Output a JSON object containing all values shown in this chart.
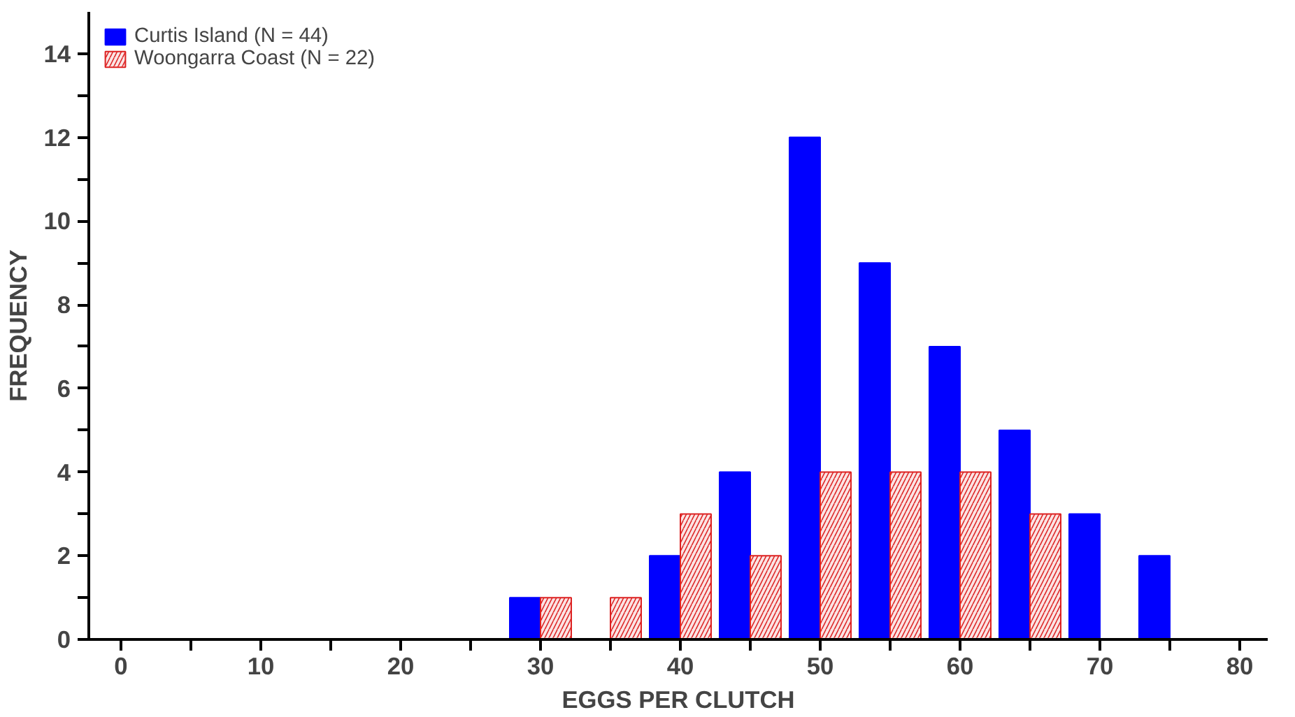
{
  "chart_data": {
    "type": "bar",
    "xlabel": "EGGS PER CLUTCH",
    "ylabel": "FREQUENCY",
    "x": [
      30,
      35,
      40,
      45,
      50,
      55,
      60,
      65,
      70,
      75
    ],
    "series": [
      {
        "name": "Curtis Island (N = 44)",
        "color": "#0000ff",
        "values": [
          1,
          null,
          2,
          4,
          12,
          9,
          7,
          5,
          3,
          2
        ]
      },
      {
        "name": "Woongarra Coast (N = 22)",
        "color": "#dd2222",
        "values": [
          1,
          1,
          3,
          2,
          4,
          4,
          4,
          3,
          null,
          null
        ]
      }
    ],
    "xlim": [
      -2.3,
      82
    ],
    "ylim": [
      0,
      15
    ],
    "xticks": [
      0,
      {
        "value": 5,
        "label": null
      },
      10,
      {
        "value": 15,
        "label": null
      },
      20,
      {
        "value": 25,
        "label": null
      },
      30,
      {
        "value": 35,
        "label": null
      },
      40,
      {
        "value": 45,
        "label": null
      },
      50,
      {
        "value": 55,
        "label": null
      },
      60,
      {
        "value": 65,
        "label": null
      },
      70,
      {
        "value": 75,
        "label": null
      },
      80
    ],
    "yticks": [
      0,
      {
        "value": 1,
        "label": null
      },
      2,
      {
        "value": 3,
        "label": null
      },
      4,
      {
        "value": 5,
        "label": null
      },
      6,
      {
        "value": 7,
        "label": null
      },
      8,
      {
        "value": 9,
        "label": null
      },
      10,
      {
        "value": 11,
        "label": null
      },
      12,
      {
        "value": 13,
        "label": null
      },
      14
    ],
    "legend": "top left",
    "grid": false
  }
}
